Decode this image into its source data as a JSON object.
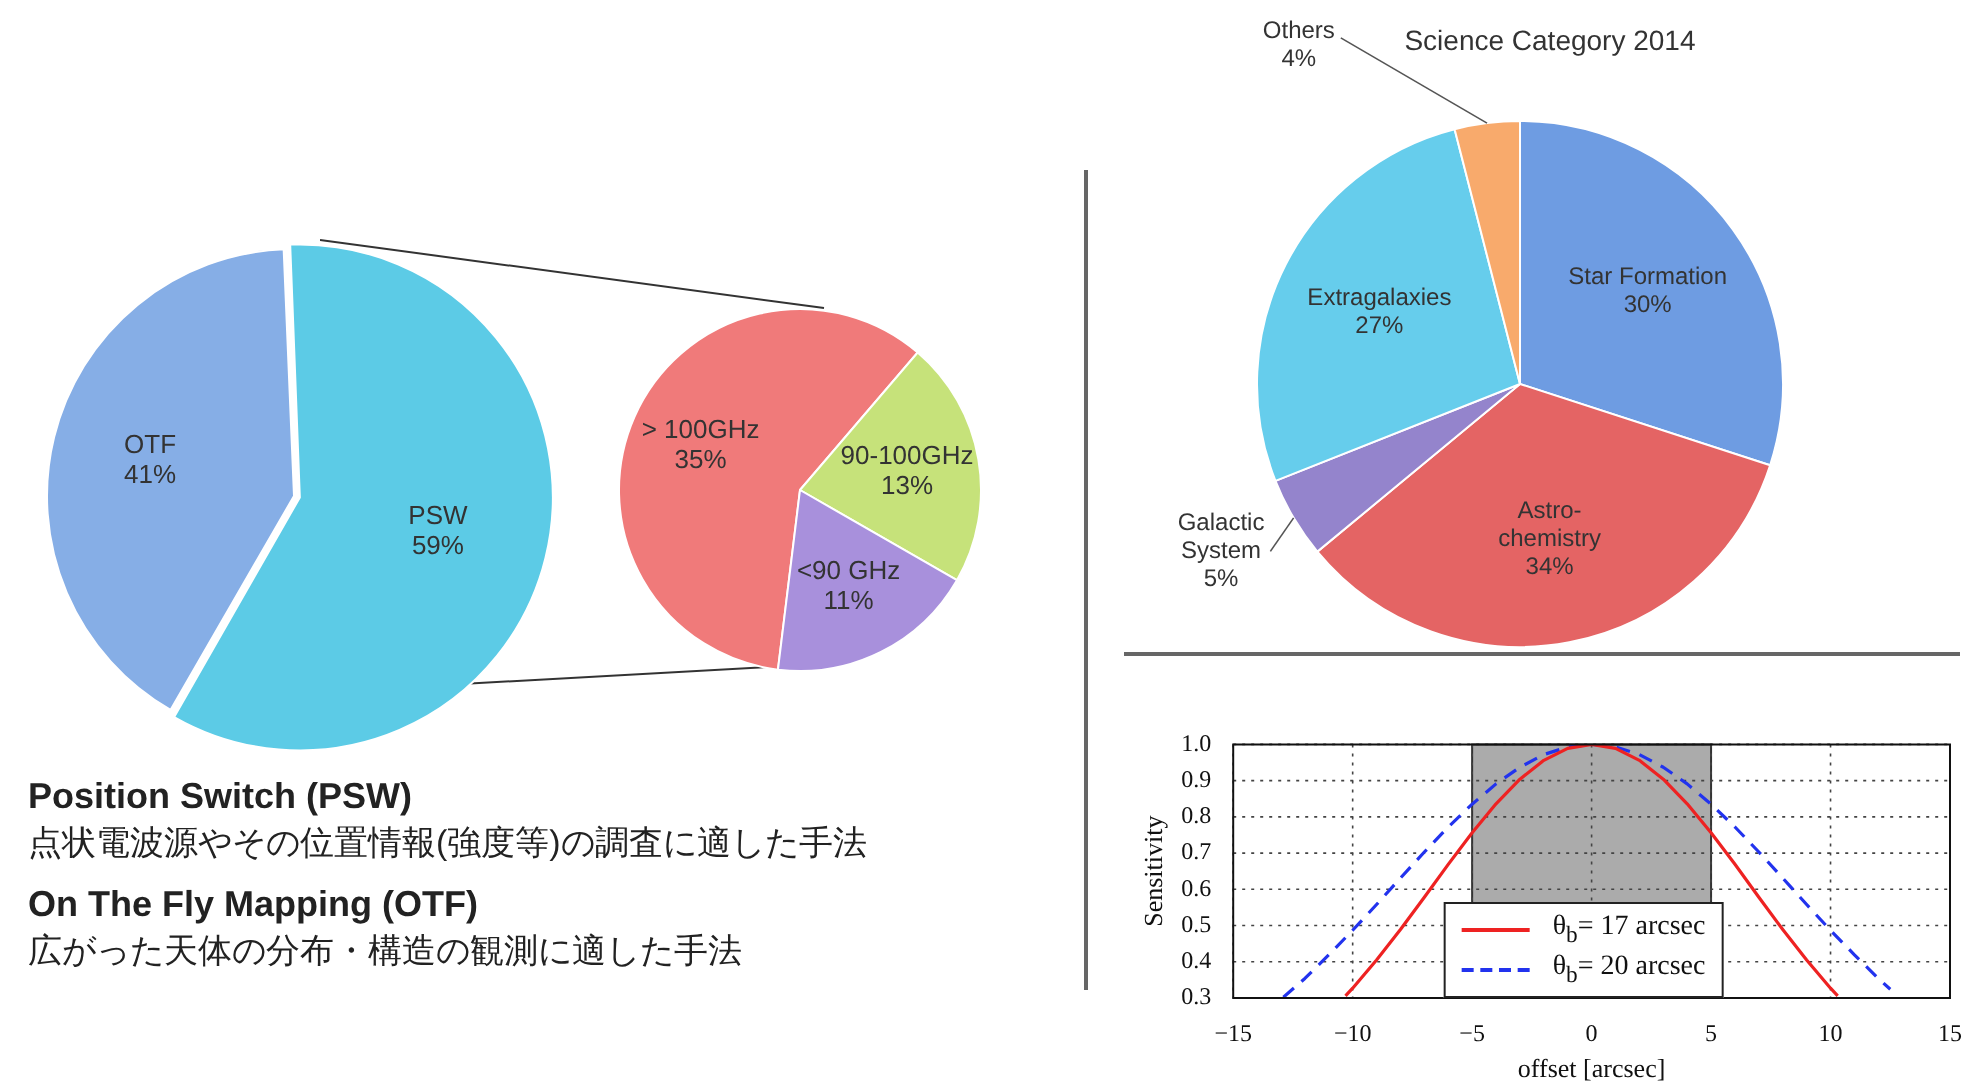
{
  "chart_data": [
    {
      "type": "pie",
      "categories": [
        "OTF",
        "PSW"
      ],
      "values": [
        41,
        59
      ],
      "value_labels": [
        "41%",
        "59%"
      ],
      "colors": [
        "#86aee6",
        "#5ccbe6"
      ],
      "annotations": [
        "Position Switch (PSW)",
        "点状電波源やその位置情報(強度等)の調査に適した手法",
        "On The Fly Mapping (OTF)",
        "広がった天体の分布・構造の観測に適した手法"
      ]
    },
    {
      "type": "pie",
      "categories": [
        "> 100GHz",
        "90-100GHz",
        "<90 GHz"
      ],
      "values": [
        35,
        13,
        11
      ],
      "value_labels": [
        "35%",
        "13%",
        "11%"
      ],
      "colors": [
        "#f07a7a",
        "#c6e27a",
        "#a890dc"
      ]
    },
    {
      "type": "pie",
      "title": "Science Category 2014",
      "categories": [
        "Star Formation",
        "Astro-chemistry",
        "Galactic System",
        "Extragalaxies",
        "Others"
      ],
      "values": [
        30,
        34,
        5,
        27,
        4
      ],
      "value_labels": [
        "30%",
        "34%",
        "5%",
        "27%",
        "4%"
      ],
      "colors": [
        "#6e9ce2",
        "#e46464",
        "#9484cc",
        "#66cdec",
        "#f8aa6c"
      ]
    },
    {
      "type": "line",
      "xlabel": "offset [arcsec]",
      "ylabel": "Sensitivity",
      "xlim": [
        -15,
        15
      ],
      "ylim": [
        0.3,
        1.0
      ],
      "xticks": [
        {
          "value": -15,
          "label": "−15"
        },
        {
          "value": -10,
          "label": "−10"
        },
        {
          "value": -5,
          "label": "−5"
        },
        0,
        5,
        10,
        15
      ],
      "yticks": [
        {
          "value": 0.3,
          "label": "0.3"
        },
        {
          "value": 0.4,
          "label": "0.4"
        },
        {
          "value": 0.5,
          "label": "0.5"
        },
        {
          "value": 0.6,
          "label": "0.6"
        },
        {
          "value": 0.7,
          "label": "0.7"
        },
        {
          "value": 0.8,
          "label": "0.8"
        },
        {
          "value": 0.9,
          "label": "0.9"
        },
        {
          "value": 1,
          "label": "1.0"
        }
      ],
      "grid": true,
      "legend": "bottom",
      "bands": [
        {
          "axis": "x",
          "from": -5,
          "to": 5,
          "color": "#ababab"
        }
      ],
      "series": [
        {
          "name": "θ$_{b}$= 17 arcsec",
          "color": "#ee2222",
          "line_style": "solid",
          "x": [
            -10.3,
            -10,
            -9,
            -8,
            -7,
            -6,
            -5,
            -4,
            -3,
            -2,
            -1,
            0,
            1,
            2,
            3,
            4,
            5,
            6,
            7,
            8,
            9,
            10,
            10.3
          ],
          "values": [
            0.306,
            0.327,
            0.405,
            0.489,
            0.578,
            0.669,
            0.756,
            0.836,
            0.904,
            0.956,
            0.989,
            1,
            0.989,
            0.956,
            0.904,
            0.836,
            0.756,
            0.669,
            0.578,
            0.489,
            0.405,
            0.327,
            0.306
          ]
        },
        {
          "name": "θ$_{b}$= 20 arcsec",
          "color": "#2233ee",
          "line_style": "dashed",
          "x": [
            -12.9,
            -12,
            -11,
            -10,
            -9,
            -8,
            -7,
            -6,
            -5,
            -4,
            -3,
            -2,
            -1,
            0,
            1,
            2,
            3,
            4,
            5,
            6,
            7,
            8,
            9,
            10,
            11,
            12,
            12.5
          ],
          "values": [
            0.302,
            0.354,
            0.419,
            0.487,
            0.558,
            0.631,
            0.703,
            0.772,
            0.835,
            0.891,
            0.937,
            0.972,
            0.993,
            1,
            0.993,
            0.972,
            0.937,
            0.891,
            0.835,
            0.772,
            0.703,
            0.631,
            0.558,
            0.487,
            0.419,
            0.354,
            0.324
          ]
        }
      ]
    }
  ]
}
